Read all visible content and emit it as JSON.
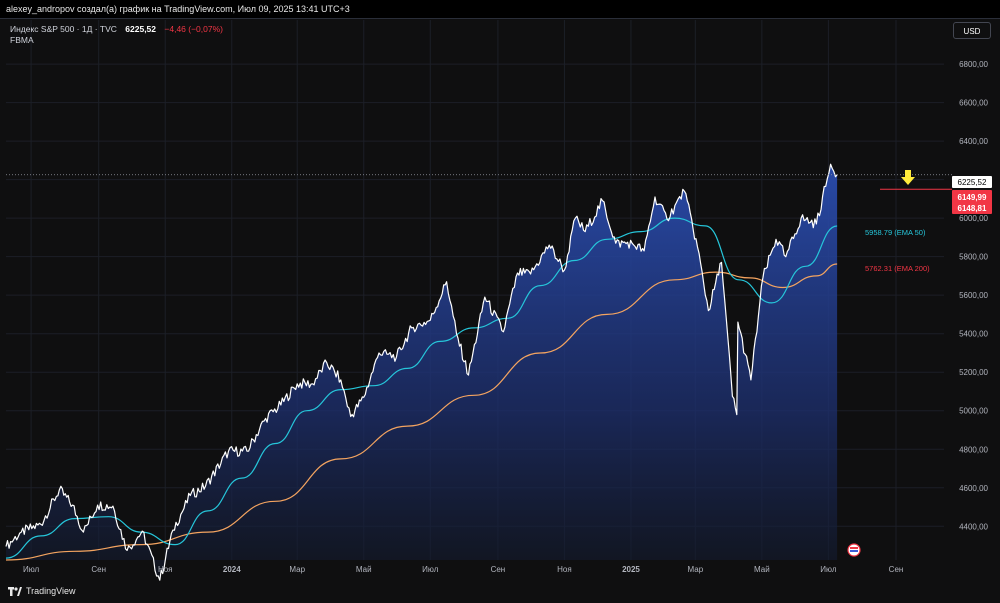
{
  "header": {
    "caption": "alexey_andropov создал(а) график на TradingView.com, Июл 09, 2025 13:41 UTC+3"
  },
  "legend": {
    "symbol": "Индекс S&P 500 · 1Д · TVC",
    "price": "6225,52",
    "change": "−4,46 (−0,07%)",
    "indicator": "FBMA"
  },
  "currency_button": "USD",
  "price_tags": {
    "last": "6225,52",
    "red1": "6149,99",
    "red2": "6148,81"
  },
  "ema_labels": {
    "ema50": "5958.79 (EMA 50)",
    "ema200": "5762.31 (EMA 200)"
  },
  "brand": "TradingView",
  "colors": {
    "price_line": "#ffffff",
    "ema50": "#26c6da",
    "ema200": "#f4a460",
    "area_top": "#2a4db0",
    "red_tag": "#f23645",
    "arrow": "#ffeb3b"
  },
  "icons": {
    "calendar_marker": "flag-event-icon",
    "arrow": "down-arrow-icon"
  },
  "chart_data": {
    "type": "line",
    "title": "Индекс S&P 500 · 1Д · TVC",
    "ylim": [
      4225,
      6925
    ],
    "y_ticks": [
      "6800,00",
      "6600,00",
      "6400,00",
      "6200,00",
      "6000,00",
      "5800,00",
      "5600,00",
      "5400,00",
      "5200,00",
      "5000,00",
      "4800,00",
      "4600,00",
      "4400,00"
    ],
    "y_tick_values": [
      6800,
      6600,
      6400,
      6200,
      6000,
      5800,
      5600,
      5400,
      5200,
      5000,
      4800,
      4600,
      4400
    ],
    "x_ticks": [
      "Июл",
      "Сен",
      "Ноя",
      "2024",
      "Мар",
      "Май",
      "Июл",
      "Сен",
      "Ноя",
      "2025",
      "Мар",
      "Май",
      "Июл",
      "Сен"
    ],
    "x_tick_dates": [
      "2023-07-01",
      "2023-09-01",
      "2023-11-01",
      "2024-01-01",
      "2024-03-01",
      "2024-05-01",
      "2024-07-01",
      "2024-09-01",
      "2024-11-01",
      "2025-01-01",
      "2025-03-01",
      "2025-05-01",
      "2025-07-01",
      "2025-09-01"
    ],
    "xlim": [
      "2023-06-08",
      "2025-10-15"
    ],
    "grid": true,
    "series": [
      {
        "name": "Индекс S&P 500",
        "points": [
          [
            "2023-06-08",
            4295
          ],
          [
            "2023-06-22",
            4370
          ],
          [
            "2023-07-10",
            4410
          ],
          [
            "2023-07-27",
            4590
          ],
          [
            "2023-08-08",
            4510
          ],
          [
            "2023-08-18",
            4370
          ],
          [
            "2023-08-31",
            4510
          ],
          [
            "2023-09-14",
            4505
          ],
          [
            "2023-09-27",
            4275
          ],
          [
            "2023-10-11",
            4375
          ],
          [
            "2023-10-27",
            4120
          ],
          [
            "2023-11-08",
            4380
          ],
          [
            "2023-11-24",
            4560
          ],
          [
            "2023-12-08",
            4610
          ],
          [
            "2023-12-29",
            4790
          ],
          [
            "2024-01-15",
            4790
          ],
          [
            "2024-02-01",
            4960
          ],
          [
            "2024-02-15",
            5030
          ],
          [
            "2024-03-01",
            5140
          ],
          [
            "2024-03-15",
            5140
          ],
          [
            "2024-03-28",
            5250
          ],
          [
            "2024-04-10",
            5160
          ],
          [
            "2024-04-19",
            4970
          ],
          [
            "2024-05-01",
            5070
          ],
          [
            "2024-05-15",
            5300
          ],
          [
            "2024-05-31",
            5280
          ],
          [
            "2024-06-14",
            5430
          ],
          [
            "2024-07-01",
            5470
          ],
          [
            "2024-07-16",
            5670
          ],
          [
            "2024-07-25",
            5400
          ],
          [
            "2024-08-05",
            5185
          ],
          [
            "2024-08-20",
            5590
          ],
          [
            "2024-09-06",
            5410
          ],
          [
            "2024-09-19",
            5715
          ],
          [
            "2024-10-01",
            5710
          ],
          [
            "2024-10-18",
            5860
          ],
          [
            "2024-11-01",
            5730
          ],
          [
            "2024-11-11",
            6000
          ],
          [
            "2024-11-20",
            5930
          ],
          [
            "2024-12-06",
            6090
          ],
          [
            "2024-12-18",
            5870
          ],
          [
            "2025-01-02",
            5870
          ],
          [
            "2025-01-13",
            5830
          ],
          [
            "2025-01-23",
            6110
          ],
          [
            "2025-02-03",
            5995
          ],
          [
            "2025-02-19",
            6140
          ],
          [
            "2025-03-03",
            5850
          ],
          [
            "2025-03-13",
            5520
          ],
          [
            "2025-03-25",
            5770
          ],
          [
            "2025-04-04",
            5075
          ],
          [
            "2025-04-08",
            4980
          ],
          [
            "2025-04-09",
            5460
          ],
          [
            "2025-04-21",
            5160
          ],
          [
            "2025-05-02",
            5690
          ],
          [
            "2025-05-14",
            5890
          ],
          [
            "2025-05-23",
            5800
          ],
          [
            "2025-06-06",
            6000
          ],
          [
            "2025-06-20",
            5970
          ],
          [
            "2025-06-30",
            6205
          ],
          [
            "2025-07-03",
            6280
          ],
          [
            "2025-07-09",
            6225
          ]
        ]
      },
      {
        "name": "EMA 50",
        "points": [
          [
            "2023-06-08",
            4235
          ],
          [
            "2023-07-10",
            4350
          ],
          [
            "2023-08-10",
            4440
          ],
          [
            "2023-09-10",
            4450
          ],
          [
            "2023-10-10",
            4370
          ],
          [
            "2023-11-10",
            4305
          ],
          [
            "2023-12-10",
            4480
          ],
          [
            "2024-01-10",
            4650
          ],
          [
            "2024-02-10",
            4830
          ],
          [
            "2024-03-10",
            5000
          ],
          [
            "2024-04-10",
            5110
          ],
          [
            "2024-05-10",
            5130
          ],
          [
            "2024-06-10",
            5220
          ],
          [
            "2024-07-10",
            5360
          ],
          [
            "2024-08-10",
            5430
          ],
          [
            "2024-09-10",
            5480
          ],
          [
            "2024-10-10",
            5650
          ],
          [
            "2024-11-10",
            5780
          ],
          [
            "2024-12-10",
            5890
          ],
          [
            "2025-01-10",
            5930
          ],
          [
            "2025-02-10",
            6000
          ],
          [
            "2025-03-10",
            5960
          ],
          [
            "2025-04-10",
            5680
          ],
          [
            "2025-05-10",
            5560
          ],
          [
            "2025-06-10",
            5750
          ],
          [
            "2025-07-09",
            5959
          ]
        ]
      },
      {
        "name": "EMA 200",
        "points": [
          [
            "2023-06-08",
            4225
          ],
          [
            "2023-08-10",
            4270
          ],
          [
            "2023-10-10",
            4305
          ],
          [
            "2023-12-10",
            4370
          ],
          [
            "2024-02-10",
            4530
          ],
          [
            "2024-04-10",
            4750
          ],
          [
            "2024-06-10",
            4920
          ],
          [
            "2024-08-10",
            5080
          ],
          [
            "2024-10-10",
            5300
          ],
          [
            "2024-12-10",
            5500
          ],
          [
            "2025-02-10",
            5680
          ],
          [
            "2025-03-20",
            5720
          ],
          [
            "2025-04-20",
            5690
          ],
          [
            "2025-05-20",
            5640
          ],
          [
            "2025-06-20",
            5700
          ],
          [
            "2025-07-09",
            5762
          ]
        ]
      }
    ],
    "reference_levels": [
      6225.52,
      6149.99,
      6148.81
    ]
  }
}
